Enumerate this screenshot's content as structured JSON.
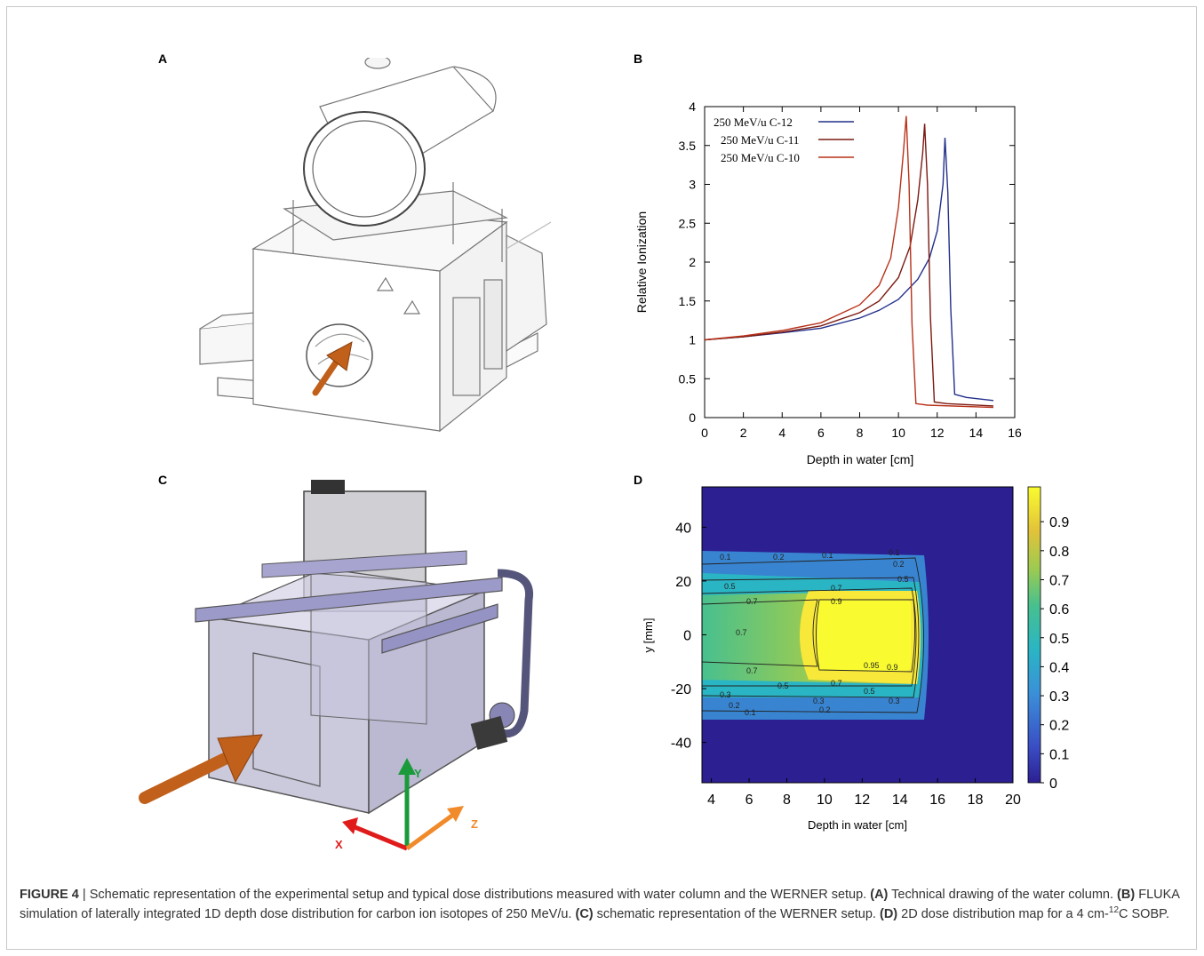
{
  "panels": {
    "a": {
      "letter": "A"
    },
    "b": {
      "letter": "B"
    },
    "c": {
      "letter": "C"
    },
    "d": {
      "letter": "D"
    }
  },
  "arrow_color": "#c0601a",
  "axis_labels": {
    "x": "X",
    "y": "Y",
    "z": "Z"
  },
  "axis_colors": {
    "x": "#e01b1b",
    "y": "#1a9a3a",
    "z": "#f08a2a"
  },
  "chart_data": [
    {
      "id": "B",
      "type": "line",
      "xlabel": "Depth in water [cm]",
      "ylabel": "Relative Ionization",
      "xlim": [
        0,
        16
      ],
      "ylim": [
        0,
        4
      ],
      "xticks": [
        "0",
        "2",
        "4",
        "6",
        "8",
        "10",
        "12",
        "14",
        "16"
      ],
      "yticks": [
        "0",
        "0.5",
        "1",
        "1.5",
        "2",
        "2.5",
        "3",
        "3.5",
        "4"
      ],
      "legend_position": "top-left",
      "grid": false,
      "series": [
        {
          "name": "250 MeV/u C-12",
          "color": "#22308a",
          "peak_x": 12.4,
          "peak_y": 3.6,
          "x": [
            0,
            2,
            4,
            6,
            8,
            9,
            10,
            11,
            11.6,
            12.0,
            12.3,
            12.4,
            12.55,
            12.7,
            12.9,
            13.5,
            14.9
          ],
          "y": [
            1.0,
            1.04,
            1.09,
            1.15,
            1.28,
            1.38,
            1.52,
            1.78,
            2.05,
            2.4,
            3.0,
            3.6,
            2.9,
            1.4,
            0.3,
            0.26,
            0.22
          ]
        },
        {
          "name": "250 MeV/u C-11",
          "color": "#7a1a12",
          "peak_x": 11.35,
          "peak_y": 3.78,
          "x": [
            0,
            2,
            4,
            6,
            8,
            9,
            10,
            10.6,
            11.0,
            11.25,
            11.35,
            11.5,
            11.65,
            11.85,
            12.5,
            14.9
          ],
          "y": [
            1.0,
            1.04,
            1.1,
            1.18,
            1.35,
            1.5,
            1.8,
            2.2,
            2.8,
            3.4,
            3.78,
            3.0,
            1.3,
            0.2,
            0.18,
            0.15
          ]
        },
        {
          "name": "250 MeV/u C-10",
          "color": "#b8321a",
          "peak_x": 10.4,
          "peak_y": 3.88,
          "x": [
            0,
            2,
            4,
            6,
            8,
            9,
            9.6,
            10.0,
            10.25,
            10.4,
            10.55,
            10.7,
            10.9,
            11.5,
            14.9
          ],
          "y": [
            1.0,
            1.05,
            1.12,
            1.22,
            1.45,
            1.7,
            2.05,
            2.7,
            3.4,
            3.88,
            3.0,
            1.2,
            0.18,
            0.16,
            0.13
          ]
        }
      ]
    },
    {
      "id": "D",
      "type": "heatmap",
      "xlabel": "Depth in water [cm]",
      "ylabel": "y [mm]",
      "xlim": [
        3.5,
        20
      ],
      "ylim": [
        -55,
        55
      ],
      "xticks": [
        "4",
        "6",
        "8",
        "10",
        "12",
        "14",
        "16",
        "18",
        "20"
      ],
      "yticks": [
        "40",
        "20",
        "0",
        "-20",
        "-40"
      ],
      "colorbar_ticks": [
        "0.9",
        "0.8",
        "0.7",
        "0.6",
        "0.5",
        "0.4",
        "0.3",
        "0.2",
        "0.1",
        "0"
      ],
      "colormap": [
        "#2c1f92",
        "#3a4dc4",
        "#3b8fd8",
        "#2ab5c4",
        "#48c08e",
        "#9acb52",
        "#e2c23a",
        "#f8e83a",
        "#f9fb30"
      ],
      "contour_levels": [
        0.1,
        0.2,
        0.3,
        0.5,
        0.7,
        0.9,
        0.95
      ]
    }
  ],
  "caption": {
    "figure_label": "FIGURE 4",
    "separator": "|",
    "text_1": "Schematic representation of the experimental setup and typical dose distributions measured with water column and the WERNER setup.",
    "ref_a": "(A)",
    "text_a": "Technical drawing of the water column.",
    "ref_b": "(B)",
    "text_b": "FLUKA simulation of laterally integrated 1D depth dose distribution for carbon ion isotopes of 250 MeV/u.",
    "ref_c": "(C)",
    "text_c": "schematic representation of the WERNER setup.",
    "ref_d": "(D)",
    "text_d_1": "2D dose distribution map for a 4 cm-",
    "text_d_sup": "12",
    "text_d_2": "C SOBP."
  }
}
